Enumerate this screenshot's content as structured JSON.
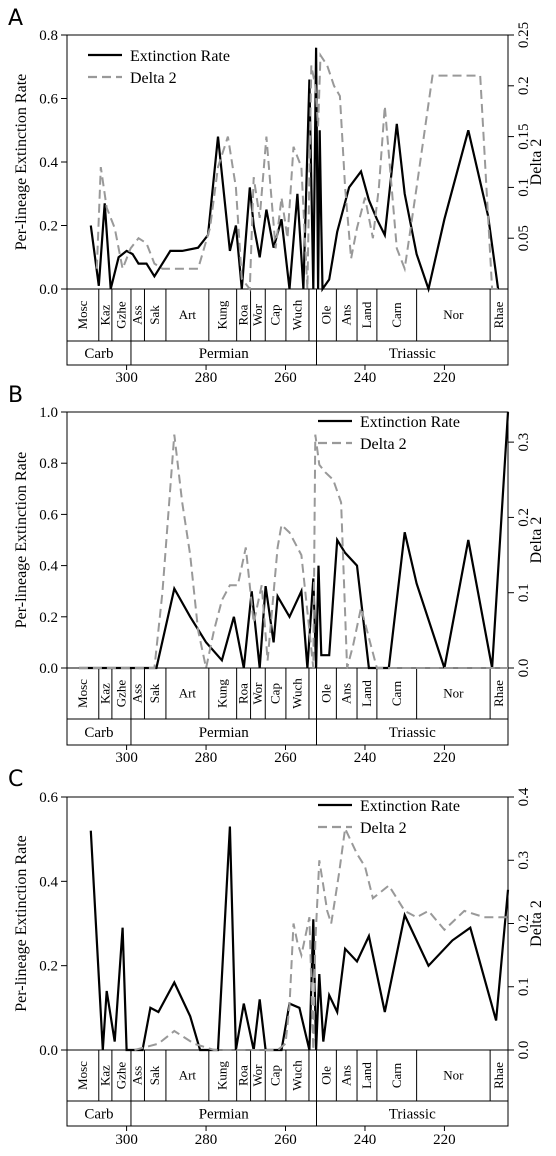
{
  "chart_data": [
    {
      "type": "line",
      "panel": "A",
      "xlim": [
        315,
        204
      ],
      "x_ticks": [
        300,
        280,
        260,
        240,
        220
      ],
      "y_left": {
        "label": "Per-lineage Extinction Rate",
        "lim": [
          0,
          0.8
        ],
        "ticks": [
          "0.0",
          "0.2",
          "0.4",
          "0.6",
          "0.8"
        ]
      },
      "y_right": {
        "label": "Delta 2",
        "lim": [
          0,
          0.25
        ],
        "ticks": [
          "0.05",
          "0.10",
          "0.15",
          "0.20",
          "0.25"
        ],
        "tick_labels": [
          "0.05",
          "0.1",
          "0.15",
          "0.2",
          "0.25"
        ]
      },
      "legend": {
        "position": "top-left"
      },
      "series": [
        {
          "name": "Extinction Rate",
          "axis": "left",
          "color": "#000000",
          "dash": "solid",
          "x": [
            309,
            307,
            305.5,
            304,
            302,
            300,
            298.5,
            297,
            295,
            293,
            291,
            289,
            286,
            282,
            279.5,
            277,
            274,
            272.5,
            271,
            269,
            268,
            266.5,
            264.8,
            263,
            261,
            259,
            257,
            255.5,
            254,
            253,
            252.3,
            251.8,
            251.4,
            251,
            250.7,
            249,
            247,
            244,
            241,
            239,
            237,
            235,
            232,
            230,
            227,
            224,
            220,
            214,
            209,
            206.5
          ],
          "y": [
            0.2,
            0.01,
            0.27,
            0.0,
            0.1,
            0.12,
            0.11,
            0.08,
            0.08,
            0.04,
            0.08,
            0.12,
            0.12,
            0.13,
            0.17,
            0.48,
            0.12,
            0.2,
            0.0,
            0.32,
            0.2,
            0.1,
            0.25,
            0.13,
            0.22,
            0.0,
            0.3,
            0.0,
            0.66,
            0.0,
            0.76,
            0.0,
            0.5,
            0.2,
            0.0,
            0.03,
            0.18,
            0.32,
            0.37,
            0.28,
            0.22,
            0.17,
            0.52,
            0.3,
            0.11,
            0.0,
            0.22,
            0.5,
            0.23,
            0.0
          ]
        },
        {
          "name": "Delta 2",
          "axis": "right",
          "color": "#999999",
          "dash": "dashed",
          "x": [
            307.5,
            306.5,
            305,
            303,
            301,
            299,
            297,
            295,
            293,
            291,
            289,
            286,
            282,
            279,
            277,
            274.5,
            272.5,
            271,
            269,
            268,
            266.5,
            264.8,
            262.5,
            261,
            259.5,
            258,
            256,
            254.5,
            253.5,
            252.5,
            251.8,
            251.2,
            249.5,
            247.8,
            246.3,
            245,
            243.5,
            242,
            240,
            238,
            236.5,
            235,
            232,
            230,
            227,
            223,
            220,
            217,
            214,
            211,
            208,
            206.5
          ],
          "y": [
            0.02,
            0.12,
            0.08,
            0.06,
            0.02,
            0.04,
            0.05,
            0.045,
            0.025,
            0.02,
            0.02,
            0.02,
            0.02,
            0.06,
            0.12,
            0.15,
            0.1,
            0.01,
            0.0,
            0.11,
            0.07,
            0.15,
            0.04,
            0.09,
            0.05,
            0.14,
            0.12,
            0.0,
            0.22,
            0.2,
            0.16,
            0.23,
            0.22,
            0.2,
            0.19,
            0.1,
            0.03,
            0.06,
            0.09,
            0.05,
            0.1,
            0.18,
            0.04,
            0.02,
            0.1,
            0.21,
            0.21,
            0.21,
            0.21,
            0.21,
            0.0,
            0.0
          ]
        }
      ]
    },
    {
      "type": "line",
      "panel": "B",
      "xlim": [
        315,
        204
      ],
      "x_ticks": [
        300,
        280,
        260,
        240,
        220
      ],
      "y_left": {
        "label": "Per-lineage Extinction Rate",
        "lim": [
          0,
          1.0
        ],
        "ticks": [
          "0.0",
          "0.2",
          "0.4",
          "0.6",
          "0.8",
          "1.0"
        ]
      },
      "y_right": {
        "label": "Delta 2",
        "lim": [
          0,
          0.34
        ],
        "ticks": [
          "0.0",
          "0.1",
          "0.2",
          "0.3"
        ]
      },
      "legend": {
        "position": "top-right"
      },
      "series": [
        {
          "name": "Extinction Rate",
          "axis": "left",
          "color": "#000000",
          "dash": "solid",
          "x": [
            312,
            296,
            292.5,
            288,
            284,
            280,
            276,
            273,
            270.5,
            268.5,
            266.5,
            265,
            263,
            262,
            259,
            256,
            254.5,
            253,
            252.3,
            251.7,
            251,
            249,
            247,
            245,
            242,
            239,
            236,
            234,
            230,
            227,
            220,
            214,
            208,
            204
          ],
          "y": [
            0.0,
            0.0,
            0.0,
            0.31,
            0.2,
            0.1,
            0.03,
            0.2,
            0.0,
            0.3,
            0.0,
            0.32,
            0.1,
            0.28,
            0.2,
            0.3,
            0.0,
            0.35,
            0.0,
            0.4,
            0.05,
            0.05,
            0.5,
            0.45,
            0.4,
            0.0,
            0.0,
            0.0,
            0.53,
            0.33,
            0.0,
            0.5,
            0.0,
            1.0
          ]
        },
        {
          "name": "Delta 2",
          "axis": "right",
          "color": "#999999",
          "dash": "dashed",
          "x": [
            312,
            293,
            291,
            288,
            286,
            284,
            282,
            280,
            278,
            276,
            274,
            272,
            270,
            268,
            266,
            264.5,
            263,
            262,
            261,
            259,
            256,
            254,
            253,
            252.5,
            251.5,
            250,
            248,
            246,
            244.5,
            243,
            241,
            240,
            238.5,
            237,
            235,
            230,
            220,
            208,
            204
          ],
          "y": [
            0.0,
            0.0,
            0.1,
            0.31,
            0.22,
            0.15,
            0.05,
            0.0,
            0.05,
            0.09,
            0.11,
            0.11,
            0.16,
            0.06,
            0.11,
            0.01,
            0.1,
            0.16,
            0.19,
            0.18,
            0.15,
            0.05,
            0.0,
            0.31,
            0.27,
            0.26,
            0.25,
            0.22,
            0.0,
            0.03,
            0.08,
            0.06,
            0.03,
            0.0,
            0.0,
            0.0,
            0.0,
            0.0,
            0.0
          ]
        }
      ]
    },
    {
      "type": "line",
      "panel": "C",
      "xlim": [
        315,
        204
      ],
      "x_ticks": [
        300,
        280,
        260,
        240,
        220
      ],
      "y_left": {
        "label": "Per-lineage Extinction Rate",
        "lim": [
          0,
          0.6
        ],
        "ticks": [
          "0.0",
          "0.2",
          "0.4",
          "0.6"
        ]
      },
      "y_right": {
        "label": "Delta 2",
        "lim": [
          0,
          0.4
        ],
        "ticks": [
          "0.0",
          "0.1",
          "0.2",
          "0.3",
          "0.4"
        ]
      },
      "legend": {
        "position": "top-right"
      },
      "series": [
        {
          "name": "Extinction Rate",
          "axis": "left",
          "color": "#000000",
          "dash": "solid",
          "x": [
            309,
            306,
            305,
            303,
            301,
            300,
            298,
            296,
            294,
            292,
            288,
            284,
            281.5,
            277,
            274,
            272.5,
            270.5,
            268,
            266.5,
            265,
            263,
            261,
            259,
            256.5,
            254,
            253,
            252.3,
            251.5,
            250.5,
            249,
            247,
            245,
            242,
            239,
            235,
            230,
            224,
            218,
            213.5,
            207,
            204
          ],
          "y": [
            0.52,
            0.0,
            0.14,
            0.02,
            0.29,
            0.0,
            0.0,
            0.0,
            0.1,
            0.09,
            0.16,
            0.08,
            0.0,
            0.0,
            0.53,
            0.0,
            0.11,
            0.0,
            0.12,
            0.0,
            0.0,
            0.0,
            0.11,
            0.1,
            0.0,
            0.31,
            0.0,
            0.18,
            0.02,
            0.13,
            0.09,
            0.24,
            0.21,
            0.27,
            0.09,
            0.32,
            0.2,
            0.26,
            0.29,
            0.07,
            0.38
          ]
        },
        {
          "name": "Delta 2",
          "axis": "right",
          "color": "#999999",
          "dash": "dashed",
          "x": [
            298,
            292,
            288,
            283,
            278,
            274,
            270,
            265,
            262,
            260,
            259,
            258,
            257,
            256,
            254,
            253,
            252.5,
            251.5,
            250.5,
            249.5,
            248.5,
            247.5,
            246.5,
            245,
            243.5,
            242,
            240,
            238,
            236,
            234,
            232,
            230,
            227,
            224,
            220,
            215,
            210,
            206,
            204
          ],
          "y": [
            0.0,
            0.01,
            0.03,
            0.01,
            0.0,
            0.0,
            0.0,
            0.0,
            0.0,
            0.01,
            0.07,
            0.2,
            0.17,
            0.15,
            0.21,
            0.0,
            0.17,
            0.3,
            0.26,
            0.22,
            0.2,
            0.24,
            0.28,
            0.35,
            0.33,
            0.31,
            0.29,
            0.24,
            0.25,
            0.26,
            0.24,
            0.22,
            0.21,
            0.22,
            0.19,
            0.22,
            0.21,
            0.21,
            0.21
          ]
        }
      ]
    }
  ],
  "stage_bands": {
    "stages": [
      {
        "label": "Mosc",
        "start": 315.2,
        "end": 307
      },
      {
        "label": "Kaz",
        "start": 307,
        "end": 303.7
      },
      {
        "label": "Gzhe",
        "start": 303.7,
        "end": 298.9
      },
      {
        "label": "Ass",
        "start": 298.9,
        "end": 295.5
      },
      {
        "label": "Sak",
        "start": 295.5,
        "end": 290.1
      },
      {
        "label": "Art",
        "start": 290.1,
        "end": 279.3
      },
      {
        "label": "Kung",
        "start": 279.3,
        "end": 272.3
      },
      {
        "label": "Roa",
        "start": 272.3,
        "end": 268.8
      },
      {
        "label": "Wor",
        "start": 268.8,
        "end": 265.1
      },
      {
        "label": "Cap",
        "start": 265.1,
        "end": 259.9
      },
      {
        "label": "Wuch",
        "start": 259.9,
        "end": 254.1
      },
      {
        "label": "",
        "start": 254.1,
        "end": 252.2
      },
      {
        "label": "Ole",
        "start": 252.2,
        "end": 247.2
      },
      {
        "label": "Ans",
        "start": 247.2,
        "end": 242
      },
      {
        "label": "Land",
        "start": 242,
        "end": 237
      },
      {
        "label": "Carn",
        "start": 237,
        "end": 227
      },
      {
        "label": "Nor",
        "start": 227,
        "end": 208.5
      },
      {
        "label": "Rhae",
        "start": 208.5,
        "end": 201.3
      }
    ],
    "periods": [
      {
        "label": "Carb",
        "start": 315.2,
        "end": 298.9
      },
      {
        "label": "Permian",
        "start": 298.9,
        "end": 252.2
      },
      {
        "label": "Triassic",
        "start": 252.2,
        "end": 201.3
      }
    ]
  }
}
